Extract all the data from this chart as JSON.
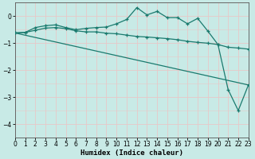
{
  "xlabel": "Humidex (Indice chaleur)",
  "xlim": [
    0,
    23
  ],
  "ylim": [
    -4.5,
    0.5
  ],
  "xticks": [
    0,
    1,
    2,
    3,
    4,
    5,
    6,
    7,
    8,
    9,
    10,
    11,
    12,
    13,
    14,
    15,
    16,
    17,
    18,
    19,
    20,
    21,
    22,
    23
  ],
  "yticks": [
    0,
    -1,
    -2,
    -3,
    -4
  ],
  "line_color": "#1a7a6e",
  "bg_color": "#c8eae6",
  "grid_color_major": "#e8c8c8",
  "grid_color_minor": "#e8c8c8",
  "line1_x": [
    0,
    1,
    2,
    3,
    4,
    5,
    6,
    7,
    8,
    9,
    10,
    11,
    12,
    13,
    14,
    15,
    16,
    17,
    18,
    19,
    20,
    21,
    22,
    23
  ],
  "line1_y": [
    -0.62,
    -0.6,
    -0.42,
    -0.35,
    -0.32,
    -0.42,
    -0.5,
    -0.45,
    -0.42,
    -0.4,
    -0.28,
    -0.12,
    0.32,
    0.05,
    0.18,
    -0.05,
    -0.05,
    -0.28,
    -0.08,
    -0.55,
    -1.05,
    -2.72,
    -3.5,
    -2.55
  ],
  "line2_x": [
    0,
    1,
    2,
    3,
    4,
    5,
    6,
    7,
    8,
    9,
    10,
    11,
    12,
    13,
    14,
    15,
    16,
    17,
    18,
    19,
    20,
    21,
    22,
    23
  ],
  "line2_y": [
    -0.62,
    -0.6,
    -0.52,
    -0.44,
    -0.42,
    -0.46,
    -0.54,
    -0.58,
    -0.58,
    -0.63,
    -0.65,
    -0.7,
    -0.75,
    -0.77,
    -0.8,
    -0.83,
    -0.87,
    -0.93,
    -0.97,
    -1.0,
    -1.05,
    -1.15,
    -1.18,
    -1.22
  ],
  "line3_x": [
    0,
    23
  ],
  "line3_y": [
    -0.62,
    -2.55
  ]
}
